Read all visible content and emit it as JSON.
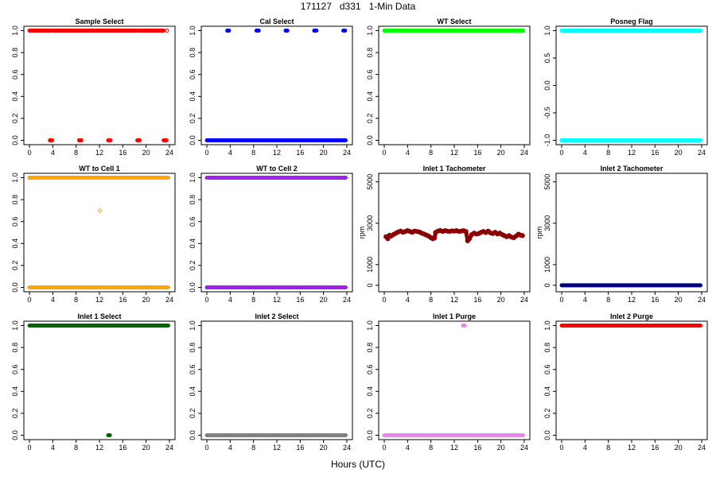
{
  "figure": {
    "title": "171127   d331   1-Min Data",
    "xlabel": "Hours (UTC)"
  },
  "chart_data": [
    {
      "type": "scatter",
      "title": "Sample Select",
      "color": "#ff0000",
      "xlim": [
        0,
        24
      ],
      "ylim": [
        0,
        1
      ],
      "yticks": [
        0.0,
        0.2,
        0.4,
        0.6,
        0.8,
        1.0
      ],
      "xticks": [
        0,
        4,
        8,
        12,
        16,
        20,
        24
      ],
      "ylabel": "",
      "segments": [
        {
          "y": 1.0,
          "x_ranges": [
            [
              0,
              3.5
            ],
            [
              3.9,
              8.5
            ],
            [
              8.9,
              13.5
            ],
            [
              13.9,
              18.5
            ],
            [
              18.9,
              23.0
            ]
          ]
        },
        {
          "y": 0.0,
          "x_ranges": [
            [
              3.5,
              3.9
            ],
            [
              8.5,
              8.9
            ],
            [
              13.5,
              13.9
            ],
            [
              18.5,
              18.9
            ],
            [
              23.0,
              23.5
            ]
          ]
        }
      ],
      "points": [
        {
          "x": 23.6,
          "y": 1.0,
          "open": true
        }
      ]
    },
    {
      "type": "scatter",
      "title": "Cal Select",
      "color": "#0000ff",
      "xlim": [
        0,
        24
      ],
      "ylim": [
        0,
        1
      ],
      "yticks": [
        0.0,
        0.2,
        0.4,
        0.6,
        0.8,
        1.0
      ],
      "xticks": [
        0,
        4,
        8,
        12,
        16,
        20,
        24
      ],
      "ylabel": "",
      "segments": [
        {
          "y": 0.0,
          "x_ranges": [
            [
              0,
              23.8
            ]
          ]
        },
        {
          "y": 1.0,
          "x_ranges": [
            [
              3.5,
              3.8
            ],
            [
              8.5,
              8.9
            ],
            [
              13.5,
              13.8
            ],
            [
              18.4,
              18.8
            ],
            [
              23.4,
              23.7
            ]
          ]
        }
      ],
      "points": []
    },
    {
      "type": "scatter",
      "title": "WT Select",
      "color": "#00ff00",
      "xlim": [
        0,
        24
      ],
      "ylim": [
        0,
        1
      ],
      "yticks": [
        0.0,
        0.2,
        0.4,
        0.6,
        0.8,
        1.0
      ],
      "xticks": [
        0,
        4,
        8,
        12,
        16,
        20,
        24
      ],
      "ylabel": "",
      "segments": [
        {
          "y": 1.0,
          "x_ranges": [
            [
              0,
              23.8
            ]
          ]
        }
      ],
      "points": []
    },
    {
      "type": "scatter",
      "title": "Posneg Flag",
      "color": "#00ffff",
      "xlim": [
        0,
        24
      ],
      "ylim": [
        -1,
        1
      ],
      "yticks": [
        -1.0,
        -0.5,
        0.0,
        0.5,
        1.0
      ],
      "xticks": [
        0,
        4,
        8,
        12,
        16,
        20,
        24
      ],
      "ylabel": "",
      "segments": [
        {
          "y": 1.0,
          "x_ranges": [
            [
              0,
              23.8
            ]
          ]
        },
        {
          "y": -1.0,
          "x_ranges": [
            [
              0,
              23.8
            ]
          ]
        }
      ],
      "points": []
    },
    {
      "type": "scatter",
      "title": "WT to Cell 1",
      "color": "#ffa500",
      "xlim": [
        0,
        24
      ],
      "ylim": [
        0,
        1
      ],
      "yticks": [
        0.0,
        0.2,
        0.4,
        0.6,
        0.8,
        1.0
      ],
      "xticks": [
        0,
        4,
        8,
        12,
        16,
        20,
        24
      ],
      "ylabel": "",
      "segments": [
        {
          "y": 1.0,
          "x_ranges": [
            [
              0,
              23.8
            ]
          ]
        },
        {
          "y": 0.0,
          "x_ranges": [
            [
              0,
              23.8
            ]
          ]
        }
      ],
      "points": [
        {
          "x": 12.1,
          "y": 0.7,
          "open": true
        }
      ]
    },
    {
      "type": "scatter",
      "title": "WT to Cell 2",
      "color": "#a020f0",
      "xlim": [
        0,
        24
      ],
      "ylim": [
        0,
        1
      ],
      "yticks": [
        0.0,
        0.2,
        0.4,
        0.6,
        0.8,
        1.0
      ],
      "xticks": [
        0,
        4,
        8,
        12,
        16,
        20,
        24
      ],
      "ylabel": "",
      "segments": [
        {
          "y": 1.0,
          "x_ranges": [
            [
              0,
              23.8
            ]
          ]
        },
        {
          "y": 0.0,
          "x_ranges": [
            [
              0,
              23.8
            ]
          ]
        }
      ],
      "points": []
    },
    {
      "type": "scatter",
      "title": "Inlet 1 Tachometer",
      "color": "#8b0000",
      "xlim": [
        0,
        24
      ],
      "ylim": [
        -100,
        5200
      ],
      "yticks": [
        0,
        1000,
        3000,
        5000
      ],
      "xticks": [
        0,
        4,
        8,
        12,
        16,
        20,
        24
      ],
      "ylabel": "rpm",
      "segments": [],
      "series": [
        {
          "name": "",
          "x": [
            0.3,
            0.6,
            0.9,
            1.2,
            1.6,
            2.0,
            2.4,
            2.8,
            3.2,
            3.6,
            4.0,
            4.4,
            4.8,
            5.2,
            5.6,
            6.0,
            6.4,
            6.8,
            7.2,
            7.6,
            8.0,
            8.3,
            8.6,
            8.8,
            9.2,
            9.6,
            10.0,
            10.4,
            10.8,
            11.2,
            11.6,
            12.0,
            12.4,
            12.8,
            13.2,
            13.6,
            14.0,
            14.3,
            14.6,
            15.0,
            15.4,
            15.8,
            16.2,
            16.6,
            17.0,
            17.4,
            17.8,
            18.2,
            18.6,
            19.0,
            19.4,
            19.8,
            20.2,
            20.6,
            21.0,
            21.4,
            21.8,
            22.2,
            22.6,
            23.0,
            23.4,
            23.7
          ],
          "y": [
            2350,
            2250,
            2420,
            2380,
            2460,
            2520,
            2580,
            2620,
            2560,
            2600,
            2640,
            2600,
            2560,
            2620,
            2600,
            2580,
            2520,
            2480,
            2430,
            2380,
            2300,
            2250,
            2280,
            2550,
            2620,
            2650,
            2600,
            2640,
            2620,
            2600,
            2630,
            2620,
            2640,
            2600,
            2620,
            2640,
            2600,
            2150,
            2250,
            2450,
            2520,
            2480,
            2500,
            2560,
            2600,
            2550,
            2620,
            2540,
            2500,
            2560,
            2480,
            2520,
            2450,
            2400,
            2350,
            2400,
            2330,
            2300,
            2380,
            2470,
            2420,
            2400
          ]
        }
      ],
      "points": []
    },
    {
      "type": "scatter",
      "title": "Inlet 2 Tachometer",
      "color": "#000080",
      "xlim": [
        0,
        24
      ],
      "ylim": [
        -100,
        5200
      ],
      "yticks": [
        0,
        1000,
        3000,
        5000
      ],
      "xticks": [
        0,
        4,
        8,
        12,
        16,
        20,
        24
      ],
      "ylabel": "rpm",
      "segments": [
        {
          "y": 0,
          "x_ranges": [
            [
              0,
              23.8
            ]
          ]
        }
      ],
      "points": []
    },
    {
      "type": "scatter",
      "title": "Inlet 1 Select",
      "color": "#006400",
      "xlim": [
        0,
        24
      ],
      "ylim": [
        0,
        1
      ],
      "yticks": [
        0.0,
        0.2,
        0.4,
        0.6,
        0.8,
        1.0
      ],
      "xticks": [
        0,
        4,
        8,
        12,
        16,
        20,
        24
      ],
      "ylabel": "",
      "segments": [
        {
          "y": 1.0,
          "x_ranges": [
            [
              0,
              23.8
            ]
          ]
        },
        {
          "y": 0.0,
          "x_ranges": [
            [
              13.5,
              13.8
            ]
          ]
        }
      ],
      "points": []
    },
    {
      "type": "scatter",
      "title": "Inlet 2 Select",
      "color": "#808080",
      "xlim": [
        0,
        24
      ],
      "ylim": [
        0,
        1
      ],
      "yticks": [
        0.0,
        0.2,
        0.4,
        0.6,
        0.8,
        1.0
      ],
      "xticks": [
        0,
        4,
        8,
        12,
        16,
        20,
        24
      ],
      "ylabel": "",
      "segments": [
        {
          "y": 0.0,
          "x_ranges": [
            [
              0,
              23.8
            ]
          ]
        }
      ],
      "points": []
    },
    {
      "type": "scatter",
      "title": "Inlet 1 Purge",
      "color": "#ee82ee",
      "xlim": [
        0,
        24
      ],
      "ylim": [
        0,
        1
      ],
      "yticks": [
        0.0,
        0.2,
        0.4,
        0.6,
        0.8,
        1.0
      ],
      "xticks": [
        0,
        4,
        8,
        12,
        16,
        20,
        24
      ],
      "ylabel": "",
      "segments": [
        {
          "y": 0.0,
          "x_ranges": [
            [
              0,
              23.8
            ]
          ]
        },
        {
          "y": 1.0,
          "x_ranges": [
            [
              13.5,
              13.8
            ]
          ]
        }
      ],
      "points": []
    },
    {
      "type": "scatter",
      "title": "Inlet 2 Purge",
      "color": "#ff0000",
      "xlim": [
        0,
        24
      ],
      "ylim": [
        0,
        1
      ],
      "yticks": [
        0.0,
        0.2,
        0.4,
        0.6,
        0.8,
        1.0
      ],
      "xticks": [
        0,
        4,
        8,
        12,
        16,
        20,
        24
      ],
      "ylabel": "",
      "segments": [
        {
          "y": 1.0,
          "x_ranges": [
            [
              0,
              23.8
            ]
          ]
        }
      ],
      "points": []
    }
  ]
}
